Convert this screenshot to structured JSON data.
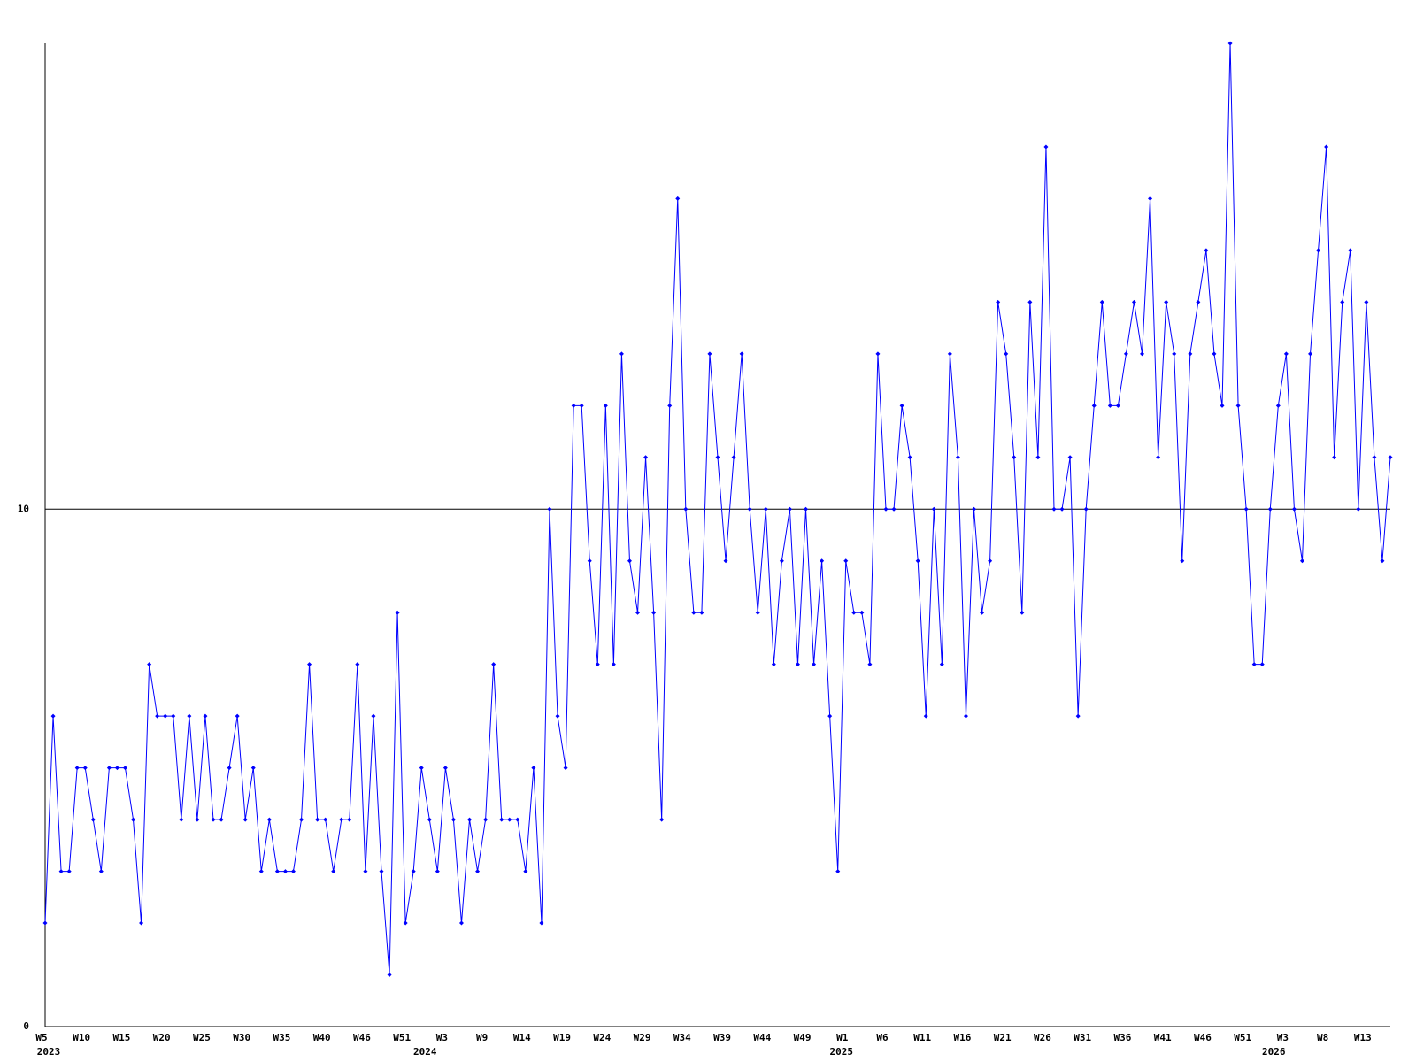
{
  "chart_data": {
    "type": "line",
    "categories": [
      "W5",
      null,
      null,
      null,
      null,
      "W10",
      null,
      null,
      null,
      null,
      "W15",
      null,
      null,
      null,
      null,
      "W20",
      null,
      null,
      null,
      null,
      "W25",
      null,
      null,
      null,
      null,
      "W30",
      null,
      null,
      null,
      null,
      "W35",
      null,
      null,
      null,
      null,
      "W40",
      null,
      null,
      null,
      null,
      "W46",
      null,
      null,
      null,
      null,
      "W51",
      null,
      null,
      null,
      null,
      "W3",
      null,
      null,
      null,
      null,
      "W9",
      null,
      null,
      null,
      null,
      "W14",
      null,
      null,
      null,
      null,
      "W19",
      null,
      null,
      null,
      null,
      "W24",
      null,
      null,
      null,
      null,
      "W29",
      null,
      null,
      null,
      null,
      "W34",
      null,
      null,
      null,
      null,
      "W39",
      null,
      null,
      null,
      null,
      "W44",
      null,
      null,
      null,
      null,
      "W49",
      null,
      null,
      null,
      null,
      "W1",
      null,
      null,
      null,
      null,
      "W6",
      null,
      null,
      null,
      null,
      "W11",
      null,
      null,
      null,
      null,
      "W16",
      null,
      null,
      null,
      null,
      "W21",
      null,
      null,
      null,
      null,
      "W26",
      null,
      null,
      null,
      null,
      "W31",
      null,
      null,
      null,
      null,
      "W36",
      null,
      null,
      null,
      null,
      "W41",
      null,
      null,
      null,
      null,
      "W46",
      null,
      null,
      null,
      null,
      "W51",
      null,
      null,
      null,
      null,
      "W3",
      null,
      null,
      null,
      null,
      "W8",
      null,
      null,
      null,
      null,
      "W13",
      null,
      null,
      null
    ],
    "category_years": [
      "2023",
      null,
      null,
      null,
      null,
      null,
      null,
      null,
      null,
      null,
      null,
      null,
      null,
      null,
      null,
      null,
      null,
      null,
      null,
      null,
      null,
      null,
      null,
      null,
      null,
      null,
      null,
      null,
      null,
      null,
      null,
      null,
      null,
      null,
      null,
      null,
      null,
      null,
      null,
      null,
      null,
      null,
      null,
      null,
      null,
      null,
      null,
      "2024",
      null,
      null,
      null,
      null,
      null,
      null,
      null,
      null,
      null,
      null,
      null,
      null,
      null,
      null,
      null,
      null,
      null,
      null,
      null,
      null,
      null,
      null,
      null,
      null,
      null,
      null,
      null,
      null,
      null,
      null,
      null,
      null,
      null,
      null,
      null,
      null,
      null,
      null,
      null,
      null,
      null,
      null,
      null,
      null,
      null,
      null,
      null,
      null,
      null,
      null,
      null,
      "2025",
      null,
      null,
      null,
      null,
      null,
      null,
      null,
      null,
      null,
      null,
      null,
      null,
      null,
      null,
      null,
      null,
      null,
      null,
      null,
      null,
      null,
      null,
      null,
      null,
      null,
      null,
      null,
      null,
      null,
      null,
      null,
      null,
      null,
      null,
      null,
      null,
      null,
      null,
      null,
      null,
      null,
      null,
      null,
      null,
      null,
      null,
      null,
      null,
      null,
      null,
      null,
      null,
      null,
      "2026",
      null,
      null,
      null,
      null,
      null,
      null,
      null,
      null,
      null,
      null,
      null,
      null,
      null,
      null,
      null
    ],
    "series": [
      {
        "color": "#0000ff",
        "values": [
          2,
          6,
          3,
          3,
          5,
          5,
          4,
          3,
          5,
          5,
          5,
          4,
          2,
          7,
          6,
          6,
          6,
          4,
          6,
          4,
          6,
          4,
          4,
          5,
          6,
          4,
          5,
          3,
          4,
          3,
          3,
          3,
          4,
          7,
          4,
          4,
          3,
          4,
          4,
          7,
          3,
          6,
          3,
          1,
          8,
          2,
          3,
          5,
          4,
          3,
          5,
          4,
          2,
          4,
          3,
          4,
          7,
          4,
          4,
          4,
          3,
          5,
          2,
          10,
          6,
          5,
          12,
          12,
          9,
          7,
          12,
          7,
          13,
          9,
          8,
          11,
          8,
          4,
          12,
          16,
          10,
          8,
          8,
          13,
          11,
          9,
          11,
          13,
          10,
          8,
          10,
          7,
          9,
          10,
          7,
          10,
          7,
          9,
          6,
          3,
          9,
          8,
          8,
          7,
          13,
          10,
          10,
          12,
          11,
          9,
          6,
          10,
          7,
          13,
          11,
          6,
          10,
          8,
          9,
          14,
          13,
          11,
          8,
          14,
          11,
          17,
          10,
          10,
          11,
          6,
          10,
          12,
          14,
          12,
          12,
          13,
          14,
          13,
          16,
          11,
          14,
          13,
          9,
          13,
          14,
          15,
          13,
          12,
          19,
          12,
          10,
          7,
          7,
          10,
          12,
          13,
          10,
          9,
          13,
          15,
          17,
          11,
          14,
          15,
          10,
          14,
          11,
          9,
          11
        ]
      }
    ],
    "ylim": [
      0,
      19
    ],
    "yticks": [
      0,
      10
    ],
    "grid": true
  }
}
